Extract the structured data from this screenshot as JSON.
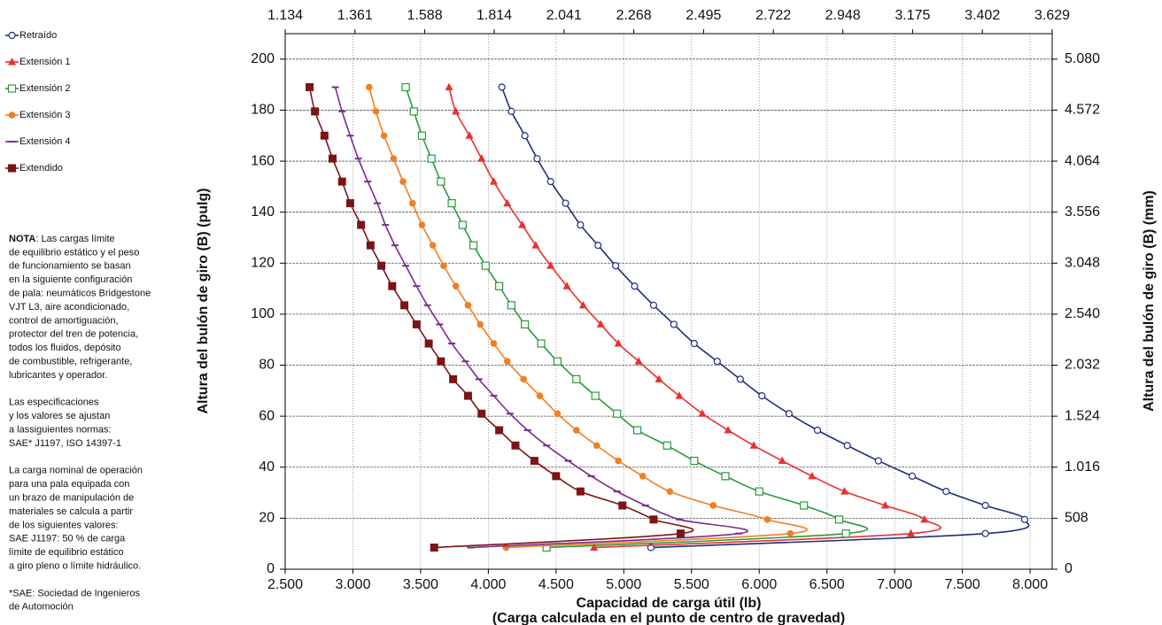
{
  "chart_data": {
    "type": "line",
    "xlabel": "Capacidad de carga útil (lb)",
    "xlabel2": "(Carga calculada en el punto de centro de gravedad)",
    "ylabel": "Altura del bulón de giro (B) (pulg)",
    "y2label": "Altura del bulón de giro (B) (mm)",
    "xlim": [
      2500,
      8163
    ],
    "xticks": [
      {
        "value": 2500,
        "label": "2.500"
      },
      {
        "value": 3000,
        "label": "3.000"
      },
      {
        "value": 3500,
        "label": "3.500"
      },
      {
        "value": 4000,
        "label": "4.000"
      },
      {
        "value": 4500,
        "label": "4.500"
      },
      {
        "value": 5000,
        "label": "5.000"
      },
      {
        "value": 5500,
        "label": "5.500"
      },
      {
        "value": 6000,
        "label": "6.000"
      },
      {
        "value": 6500,
        "label": "6.500"
      },
      {
        "value": 7000,
        "label": "7.000"
      },
      {
        "value": 7500,
        "label": "7.500"
      },
      {
        "value": 8000,
        "label": "8.000"
      }
    ],
    "x2lim": [
      1134,
      3629
    ],
    "x2ticks": [
      {
        "value": 1134,
        "label": "1.134"
      },
      {
        "value": 1361,
        "label": "1.361"
      },
      {
        "value": 1588,
        "label": "1.588"
      },
      {
        "value": 1814,
        "label": "1.814"
      },
      {
        "value": 2041,
        "label": "2.041"
      },
      {
        "value": 2268,
        "label": "2.268"
      },
      {
        "value": 2495,
        "label": "2.495"
      },
      {
        "value": 2722,
        "label": "2.722"
      },
      {
        "value": 2948,
        "label": "2.948"
      },
      {
        "value": 3175,
        "label": "3.175"
      },
      {
        "value": 3402,
        "label": "3.402"
      },
      {
        "value": 3629,
        "label": "3.629"
      }
    ],
    "ylim": [
      0,
      210
    ],
    "yticks": [
      0,
      20,
      40,
      60,
      80,
      100,
      120,
      140,
      160,
      180,
      200
    ],
    "y2lim": [
      0,
      5334
    ],
    "y2ticks": [
      0,
      508,
      {
        "value": 1016,
        "label": "1.016"
      },
      {
        "value": 1524,
        "label": "1.524"
      },
      {
        "value": 2032,
        "label": "2.032"
      },
      {
        "value": 2540,
        "label": "2.540"
      },
      {
        "value": 3048,
        "label": "3.048"
      },
      {
        "value": 3556,
        "label": "3.556"
      },
      {
        "value": 4064,
        "label": "4.064"
      },
      {
        "value": 4572,
        "label": "4.572"
      },
      {
        "value": 5080,
        "label": "5.080"
      }
    ],
    "grid": true,
    "legend": "upper left",
    "series": [
      {
        "name": "Retraído",
        "color": "#1f2d7b",
        "marker": "open-circle",
        "x": [
          4100,
          4170,
          4270,
          4360,
          4460,
          4570,
          4680,
          4810,
          4940,
          5080,
          5220,
          5370,
          5520,
          5690,
          5860,
          6020,
          6220,
          6430,
          6650,
          6880,
          7130,
          7380,
          7670,
          7960,
          7670,
          5200
        ],
        "values": [
          189,
          179.5,
          170,
          161,
          152,
          143.5,
          135,
          127,
          119,
          111,
          103.5,
          96,
          88.5,
          81.5,
          74.5,
          68,
          61,
          54.5,
          48.5,
          42.5,
          36.5,
          30.5,
          25,
          19.5,
          14,
          8.5
        ]
      },
      {
        "name": "Extensión 1",
        "color": "#e8312f",
        "marker": "triangle",
        "x": [
          3710,
          3760,
          3860,
          3950,
          4040,
          4140,
          4250,
          4350,
          4460,
          4580,
          4700,
          4830,
          4960,
          5110,
          5260,
          5410,
          5580,
          5770,
          5960,
          6170,
          6390,
          6630,
          6930,
          7220,
          7120,
          4780
        ],
        "values": [
          189,
          179.5,
          170,
          161,
          152,
          143.5,
          135,
          127,
          119,
          111,
          103.5,
          96,
          88.5,
          81.5,
          74.5,
          68,
          61,
          54.5,
          48.5,
          42.5,
          36.5,
          30.5,
          25,
          19.5,
          14,
          8.5
        ]
      },
      {
        "name": "Extensión 2",
        "color": "#2a9a3a",
        "marker": "open-square",
        "x": [
          3390,
          3450,
          3510,
          3580,
          3650,
          3730,
          3810,
          3890,
          3980,
          4080,
          4170,
          4270,
          4390,
          4510,
          4650,
          4790,
          4950,
          5100,
          5320,
          5520,
          5750,
          6000,
          6330,
          6590,
          6640,
          4430
        ],
        "values": [
          189,
          179.5,
          170,
          161,
          152,
          143.5,
          135,
          127,
          119,
          111,
          103.5,
          96,
          88.5,
          81.5,
          74.5,
          68,
          61,
          54.5,
          48.5,
          42.5,
          36.5,
          30.5,
          25,
          19.5,
          14,
          8.5
        ]
      },
      {
        "name": "Extensión 3",
        "color": "#f07f22",
        "marker": "circle",
        "x": [
          3120,
          3170,
          3230,
          3300,
          3370,
          3440,
          3510,
          3590,
          3670,
          3760,
          3850,
          3940,
          4040,
          4140,
          4260,
          4380,
          4510,
          4650,
          4800,
          4960,
          5140,
          5340,
          5660,
          6060,
          6230,
          4130
        ],
        "values": [
          189,
          179.5,
          170,
          161,
          152,
          143.5,
          135,
          127,
          119,
          111,
          103.5,
          96,
          88.5,
          81.5,
          74.5,
          68,
          61,
          54.5,
          48.5,
          42.5,
          36.5,
          30.5,
          25,
          19.5,
          14,
          8.5
        ]
      },
      {
        "name": "Extensión 4",
        "color": "#7b2d8e",
        "marker": "dash",
        "x": [
          2870,
          2920,
          2980,
          3040,
          3110,
          3180,
          3240,
          3310,
          3390,
          3470,
          3550,
          3640,
          3730,
          3830,
          3930,
          4040,
          4160,
          4290,
          4430,
          4590,
          4760,
          4950,
          5160,
          5410,
          5850,
          3870
        ],
        "values": [
          189,
          179.5,
          170,
          161,
          152,
          143.5,
          135,
          127,
          119,
          111,
          103.5,
          96,
          88.5,
          81.5,
          74.5,
          68,
          61,
          54.5,
          48.5,
          42.5,
          36.5,
          30.5,
          25,
          19.5,
          14,
          8.5
        ]
      },
      {
        "name": "Extendido",
        "color": "#7b1416",
        "marker": "square",
        "x": [
          2680,
          2720,
          2790,
          2850,
          2920,
          2980,
          3060,
          3130,
          3210,
          3290,
          3380,
          3470,
          3560,
          3650,
          3740,
          3850,
          3950,
          4080,
          4200,
          4340,
          4500,
          4680,
          4990,
          5220,
          5420,
          3600
        ],
        "values": [
          189,
          179.5,
          170,
          161,
          152,
          143.5,
          135,
          127,
          119,
          111,
          103.5,
          96,
          88.5,
          81.5,
          74.5,
          68,
          61,
          54.5,
          48.5,
          42.5,
          36.5,
          30.5,
          25,
          19.5,
          14,
          8.5
        ]
      }
    ],
    "notes": {
      "label": "NOTA",
      "groups": [
        [
          ": Las cargas límite",
          "de equilibrio estático y el peso",
          "de funcionamiento se basan",
          "en la siguiente configuración",
          "de pala: neumáticos Bridgestone",
          "VJT L3, aire acondicionado,",
          "control de amortiguación,",
          "protector del tren de potencia,",
          "todos los fluidos, depósito",
          "de combustible, refrigerante,",
          "lubricantes y operador."
        ],
        [
          "Las especificaciones",
          "y los valores se ajustan",
          "a lassiguientes normas:",
          "SAE* J1197, ISO 14397-1"
        ],
        [
          "La carga nominal de operación",
          "para una pala equipada con",
          "un brazo de manipulación de",
          "materiales se calcula a partir",
          "de los siguientes valores:",
          "SAE J1197: 50 % de carga",
          "límite de equilibrio estático",
          "a giro pleno o límite hidráulico."
        ],
        [
          "*SAE: Sociedad de Ingenieros",
          "de Automoción"
        ]
      ]
    }
  }
}
